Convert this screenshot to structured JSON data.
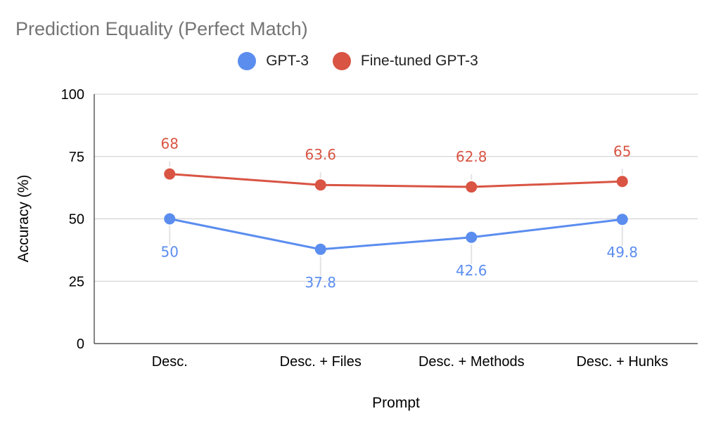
{
  "chart_data": {
    "type": "line",
    "title": "Prediction Equality (Perfect Match)",
    "xlabel": "Prompt",
    "ylabel": "Accuracy (%)",
    "categories": [
      "Desc.",
      "Desc. + Files",
      "Desc. + Methods",
      "Desc. + Hunks"
    ],
    "ylim": [
      0,
      100
    ],
    "yticks": [
      0,
      25,
      50,
      75,
      100
    ],
    "grid": true,
    "legend_position": "top-center",
    "series": [
      {
        "name": "GPT-3",
        "color": "#5b8def",
        "values": [
          50,
          37.8,
          42.6,
          49.8
        ],
        "labels": [
          "50",
          "37.8",
          "42.6",
          "49.8"
        ],
        "label_position": "below"
      },
      {
        "name": "Fine-tuned GPT-3",
        "color": "#d95443",
        "values": [
          68,
          63.6,
          62.8,
          65
        ],
        "labels": [
          "68",
          "63.6",
          "62.8",
          "65"
        ],
        "label_position": "above"
      }
    ]
  }
}
